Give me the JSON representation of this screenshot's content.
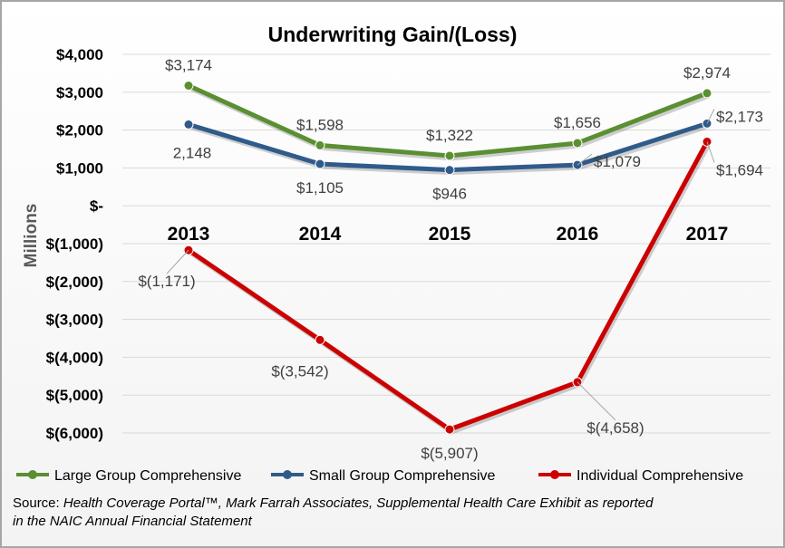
{
  "chart_data": {
    "type": "line",
    "title": "Underwriting Gain/(Loss)",
    "ylabel": "Millions",
    "xlabel": "",
    "categories": [
      "2013",
      "2014",
      "2015",
      "2016",
      "2017"
    ],
    "ylim": [
      -6000,
      4000
    ],
    "yticks": [
      4000,
      3000,
      2000,
      1000,
      0,
      -1000,
      -2000,
      -3000,
      -4000,
      -5000,
      -6000
    ],
    "ytick_labels": [
      "$4,000",
      "$3,000",
      "$2,000",
      "$1,000",
      "$-",
      "$(1,000)",
      "$(2,000)",
      "$(3,000)",
      "$(4,000)",
      "$(5,000)",
      "$(6,000)"
    ],
    "grid": true,
    "legend_position": "bottom",
    "series": [
      {
        "name": "Large Group Comprehensive",
        "color": "#5a8f32",
        "values": [
          3174,
          1598,
          1322,
          1656,
          2974
        ],
        "labels": [
          "$3,174",
          "$1,598",
          "$1,322",
          "$1,656",
          "$2,974"
        ],
        "label_pos": [
          "above",
          "above",
          "above",
          "above",
          "above"
        ]
      },
      {
        "name": "Small Group Comprehensive",
        "color": "#2f5b8a",
        "values": [
          2148,
          1105,
          946,
          1079,
          2173
        ],
        "labels": [
          "2,148",
          "$1,105",
          "$946",
          "$1,079",
          "$2,173"
        ],
        "label_pos": [
          "below",
          "below",
          "below",
          "right",
          "right"
        ]
      },
      {
        "name": "Individual Comprehensive",
        "color": "#cc0000",
        "values": [
          -1171,
          -3542,
          -5907,
          -4658,
          1694
        ],
        "labels": [
          "$(1,171)",
          "$(3,542)",
          "$(5,907)",
          "$(4,658)",
          "$1,694"
        ],
        "label_pos": [
          "below",
          "below",
          "below",
          "below",
          "below-right"
        ]
      }
    ]
  },
  "source": {
    "prefix": "Source:",
    "text_line1": "Health Coverage Portal™, Mark Farrah Associates, Supplemental Health Care Exhibit as reported",
    "text_line2": "in the NAIC Annual Financial Statement"
  }
}
